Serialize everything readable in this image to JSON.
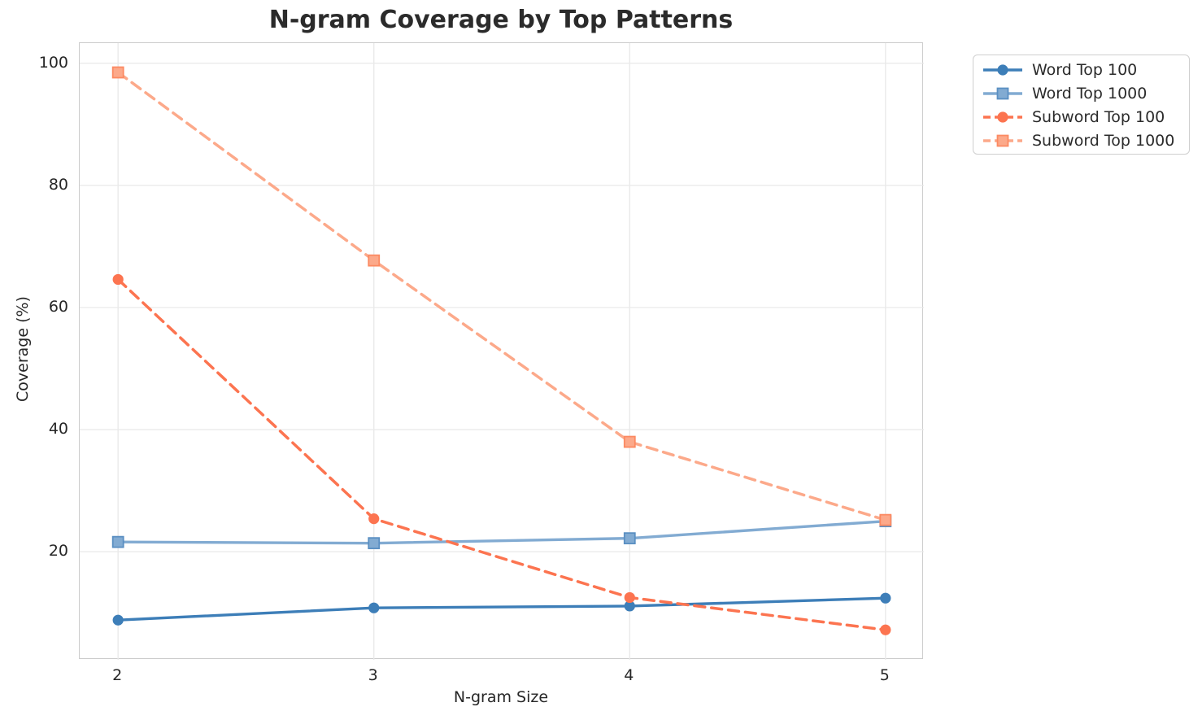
{
  "chart_data": {
    "type": "line",
    "title": "N-gram Coverage by Top Patterns",
    "xlabel": "N-gram Size",
    "ylabel": "Coverage (%)",
    "x": [
      2,
      3,
      4,
      5
    ],
    "xtick_labels": [
      "2",
      "3",
      "4",
      "5"
    ],
    "yticks": [
      20,
      40,
      60,
      80,
      100
    ],
    "ytick_labels": [
      "20",
      "40",
      "60",
      "80",
      "100"
    ],
    "xlim": [
      1.85,
      5.15
    ],
    "ylim": [
      2.3,
      103.3
    ],
    "grid": true,
    "legend_position": "outside upper right",
    "series": [
      {
        "name": "Word Top 100",
        "values": [
          8.8,
          10.8,
          11.1,
          12.4
        ],
        "color": "#3d7eb8",
        "edge": "#3d7eb8",
        "linestyle": "solid",
        "marker": "circle"
      },
      {
        "name": "Word Top 1000",
        "values": [
          21.6,
          21.4,
          22.2,
          25.0
        ],
        "color": "#82abd2",
        "edge": "#5a8fc2",
        "linestyle": "solid",
        "marker": "square"
      },
      {
        "name": "Subword Top 100",
        "values": [
          64.6,
          25.4,
          12.5,
          7.2
        ],
        "color": "#fc7450",
        "edge": "#fc7450",
        "linestyle": "dashed",
        "marker": "circle"
      },
      {
        "name": "Subword Top 1000",
        "values": [
          98.5,
          67.7,
          38.0,
          25.2
        ],
        "color": "#fca98a",
        "edge": "#fc8a62",
        "linestyle": "dashed",
        "marker": "square"
      }
    ],
    "style": {
      "grid_color": "#e9e9e9",
      "spine_color": "#cccccc",
      "text_color": "#262626",
      "title_color": "#2b2b2b",
      "background": "#ffffff"
    }
  }
}
